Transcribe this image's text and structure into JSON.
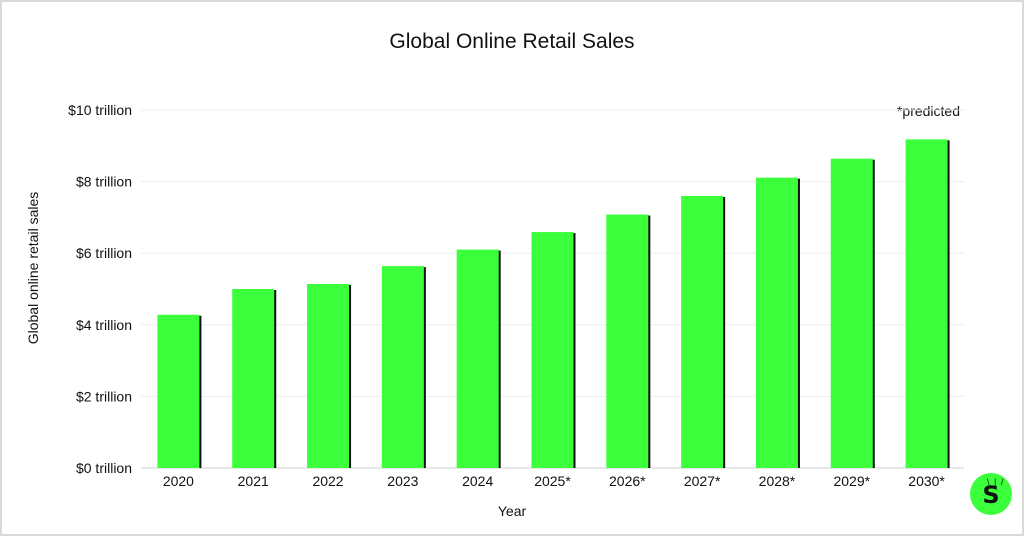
{
  "chart_data": {
    "type": "bar",
    "title": "Global Online Retail Sales",
    "xlabel": "Year",
    "ylabel": "Global online retail sales",
    "note": "*predicted",
    "categories": [
      "2020",
      "2021",
      "2022",
      "2023",
      "2024",
      "2025*",
      "2026*",
      "2027*",
      "2028*",
      "2029*",
      "2030*"
    ],
    "values": [
      4.28,
      5.0,
      5.14,
      5.64,
      6.1,
      6.59,
      7.08,
      7.6,
      8.11,
      8.64,
      9.18
    ],
    "ylim": [
      0,
      10
    ],
    "yticks": [
      {
        "value": 0,
        "label": "$0 trillion"
      },
      {
        "value": 2,
        "label": "$2 trillion"
      },
      {
        "value": 4,
        "label": "$4 trillion"
      },
      {
        "value": 6,
        "label": "$6 trillion"
      },
      {
        "value": 8,
        "label": "$8 trillion"
      },
      {
        "value": 10,
        "label": "$10 trillion"
      }
    ],
    "grid": true,
    "bar_color": "#3bff3b",
    "shadow_color": "#111111"
  },
  "logo": {
    "letter": "S",
    "color": "#3bff3b"
  }
}
